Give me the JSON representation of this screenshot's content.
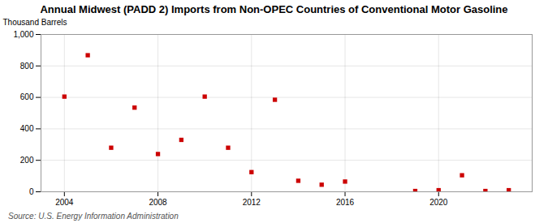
{
  "chart_data": {
    "type": "scatter",
    "title": "Annual Midwest (PADD 2) Imports from Non-OPEC Countries of Conventional Motor Gasoline",
    "ylabel": "Thousand Barrels",
    "source": "Source: U.S. Energy Information Administration",
    "x": [
      2004,
      2005,
      2006,
      2007,
      2008,
      2009,
      2010,
      2011,
      2012,
      2013,
      2014,
      2015,
      2016,
      2019,
      2020,
      2021,
      2022,
      2023
    ],
    "values": [
      605,
      868,
      280,
      535,
      240,
      330,
      605,
      280,
      125,
      585,
      70,
      45,
      65,
      5,
      10,
      105,
      5,
      10
    ],
    "color": "#cc0000",
    "marker": "square",
    "xlim": [
      2003.0,
      2024.0
    ],
    "xticks": [
      2004,
      2008,
      2012,
      2016,
      2020
    ],
    "ylim": [
      0,
      1000
    ],
    "yticks": [
      0,
      200,
      400,
      600,
      800,
      {
        "value": 1000,
        "label": "1,000"
      }
    ],
    "grid": true
  }
}
